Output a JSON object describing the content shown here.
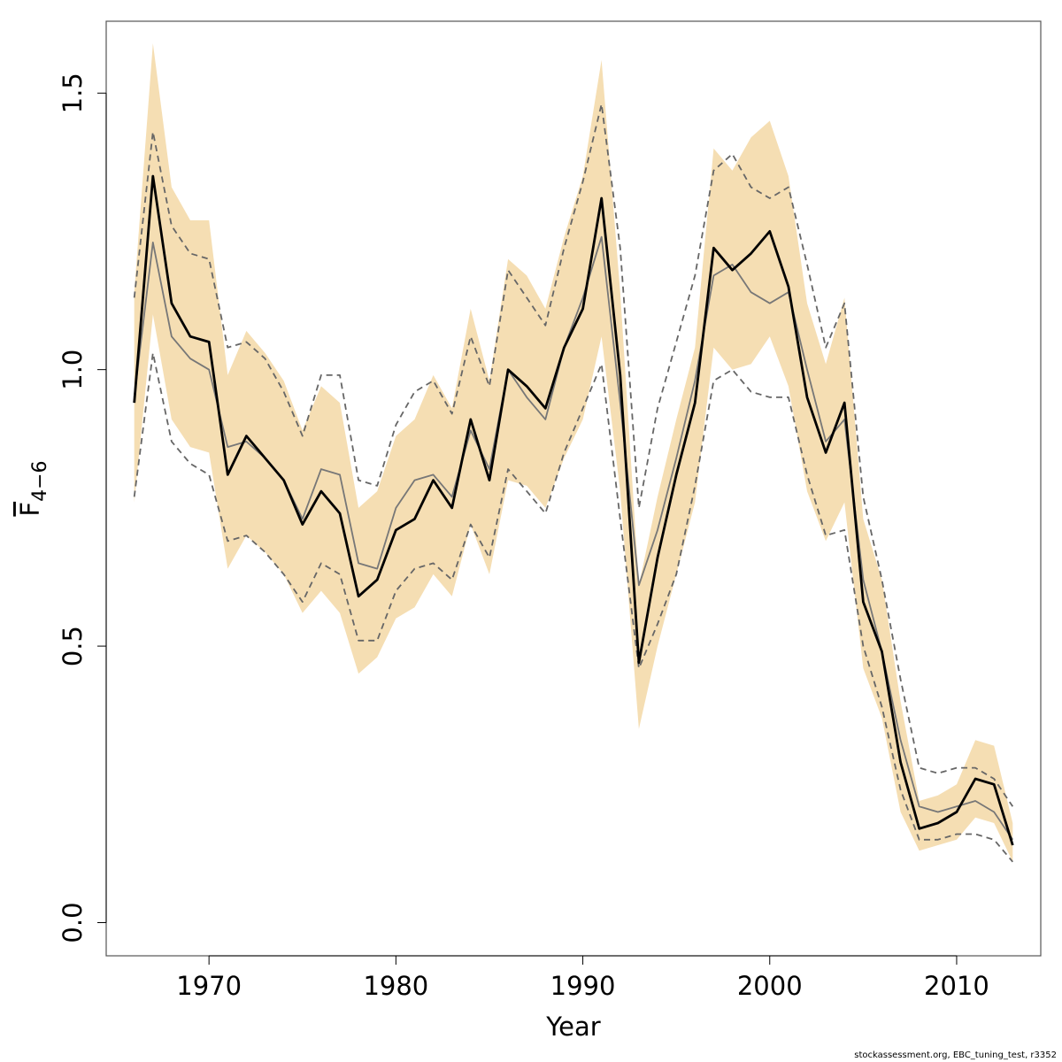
{
  "chart_data": {
    "type": "line",
    "xlabel": "Year",
    "ylabel": {
      "main": "F",
      "subscript": "4−6"
    },
    "xlim": [
      1964.5,
      2014.5
    ],
    "ylim": [
      -0.06,
      1.63
    ],
    "x_ticks": [
      1970,
      1980,
      1990,
      2000,
      2010
    ],
    "y_ticks": [
      0.0,
      0.5,
      1.0,
      1.5
    ],
    "x_tick_labels": [
      "1970",
      "1980",
      "1990",
      "2000",
      "2010"
    ],
    "y_tick_labels": [
      "0.0",
      "0.5",
      "1.0",
      "1.5"
    ],
    "grid": false,
    "x": [
      1966,
      1967,
      1968,
      1969,
      1970,
      1971,
      1972,
      1973,
      1974,
      1975,
      1976,
      1977,
      1978,
      1979,
      1980,
      1981,
      1982,
      1983,
      1984,
      1985,
      1986,
      1987,
      1988,
      1989,
      1990,
      1991,
      1992,
      1993,
      1994,
      1995,
      1996,
      1997,
      1998,
      1999,
      2000,
      2001,
      2002,
      2003,
      2004,
      2005,
      2006,
      2007,
      2008,
      2009,
      2010,
      2011,
      2012,
      2013
    ],
    "band": {
      "color": "#f5deb3",
      "upper": [
        1.14,
        1.59,
        1.33,
        1.27,
        1.27,
        0.99,
        1.07,
        1.03,
        0.98,
        0.89,
        0.97,
        0.94,
        0.75,
        0.78,
        0.88,
        0.91,
        0.99,
        0.93,
        1.11,
        0.98,
        1.2,
        1.17,
        1.11,
        1.24,
        1.35,
        1.56,
        1.14,
        0.61,
        0.77,
        0.91,
        1.04,
        1.4,
        1.36,
        1.42,
        1.45,
        1.35,
        1.12,
        1.01,
        1.13,
        0.73,
        0.62,
        0.4,
        0.22,
        0.23,
        0.25,
        0.33,
        0.32,
        0.18
      ],
      "lower": [
        0.76,
        1.1,
        0.91,
        0.86,
        0.85,
        0.64,
        0.7,
        0.67,
        0.63,
        0.56,
        0.6,
        0.56,
        0.45,
        0.48,
        0.55,
        0.57,
        0.63,
        0.59,
        0.72,
        0.63,
        0.8,
        0.79,
        0.75,
        0.84,
        0.91,
        1.06,
        0.78,
        0.35,
        0.5,
        0.63,
        0.76,
        1.04,
        1.0,
        1.01,
        1.06,
        0.97,
        0.78,
        0.69,
        0.76,
        0.46,
        0.37,
        0.2,
        0.13,
        0.14,
        0.15,
        0.19,
        0.18,
        0.11
      ]
    },
    "series": [
      {
        "name": "",
        "style": "solid",
        "color": "#000000",
        "width": 2.8,
        "values": [
          0.94,
          1.35,
          1.12,
          1.06,
          1.05,
          0.81,
          0.88,
          0.84,
          0.8,
          0.72,
          0.78,
          0.74,
          0.59,
          0.62,
          0.71,
          0.73,
          0.8,
          0.75,
          0.91,
          0.8,
          1.0,
          0.97,
          0.93,
          1.04,
          1.11,
          1.31,
          0.99,
          0.47,
          0.66,
          0.81,
          0.94,
          1.22,
          1.18,
          1.21,
          1.25,
          1.15,
          0.95,
          0.85,
          0.94,
          0.58,
          0.49,
          0.29,
          0.17,
          0.18,
          0.2,
          0.26,
          0.25,
          0.14
        ]
      },
      {
        "name": "",
        "style": "solid",
        "color": "#777777",
        "width": 1.8,
        "values": [
          0.95,
          1.23,
          1.06,
          1.02,
          1.0,
          0.86,
          0.87,
          0.84,
          0.8,
          0.73,
          0.82,
          0.81,
          0.65,
          0.64,
          0.75,
          0.8,
          0.81,
          0.77,
          0.89,
          0.82,
          1.0,
          0.95,
          0.91,
          1.04,
          1.13,
          1.24,
          0.94,
          0.61,
          0.71,
          0.84,
          0.98,
          1.17,
          1.19,
          1.14,
          1.12,
          1.14,
          1.0,
          0.87,
          0.91,
          0.62,
          0.49,
          0.33,
          0.21,
          0.2,
          0.21,
          0.22,
          0.2,
          0.15
        ]
      },
      {
        "name": "",
        "style": "dashed",
        "color": "#666666",
        "width": 1.8,
        "values": [
          1.13,
          1.43,
          1.26,
          1.21,
          1.2,
          1.04,
          1.05,
          1.02,
          0.96,
          0.88,
          0.99,
          0.99,
          0.8,
          0.79,
          0.9,
          0.96,
          0.98,
          0.92,
          1.06,
          0.97,
          1.18,
          1.13,
          1.08,
          1.22,
          1.34,
          1.48,
          1.22,
          0.75,
          0.93,
          1.05,
          1.17,
          1.36,
          1.39,
          1.33,
          1.31,
          1.33,
          1.19,
          1.04,
          1.12,
          0.77,
          0.62,
          0.44,
          0.28,
          0.27,
          0.28,
          0.28,
          0.26,
          0.21
        ]
      },
      {
        "name": "",
        "style": "dashed",
        "color": "#666666",
        "width": 1.8,
        "values": [
          0.77,
          1.03,
          0.87,
          0.83,
          0.81,
          0.69,
          0.7,
          0.67,
          0.63,
          0.58,
          0.65,
          0.63,
          0.51,
          0.51,
          0.6,
          0.64,
          0.65,
          0.62,
          0.72,
          0.66,
          0.82,
          0.78,
          0.74,
          0.85,
          0.93,
          1.01,
          0.73,
          0.46,
          0.54,
          0.63,
          0.79,
          0.98,
          1.0,
          0.96,
          0.95,
          0.95,
          0.81,
          0.7,
          0.71,
          0.5,
          0.39,
          0.24,
          0.15,
          0.15,
          0.16,
          0.16,
          0.15,
          0.11
        ]
      }
    ]
  },
  "footer": {
    "credit": "stockassessment.org, EBC_tuning_test, r3352"
  }
}
